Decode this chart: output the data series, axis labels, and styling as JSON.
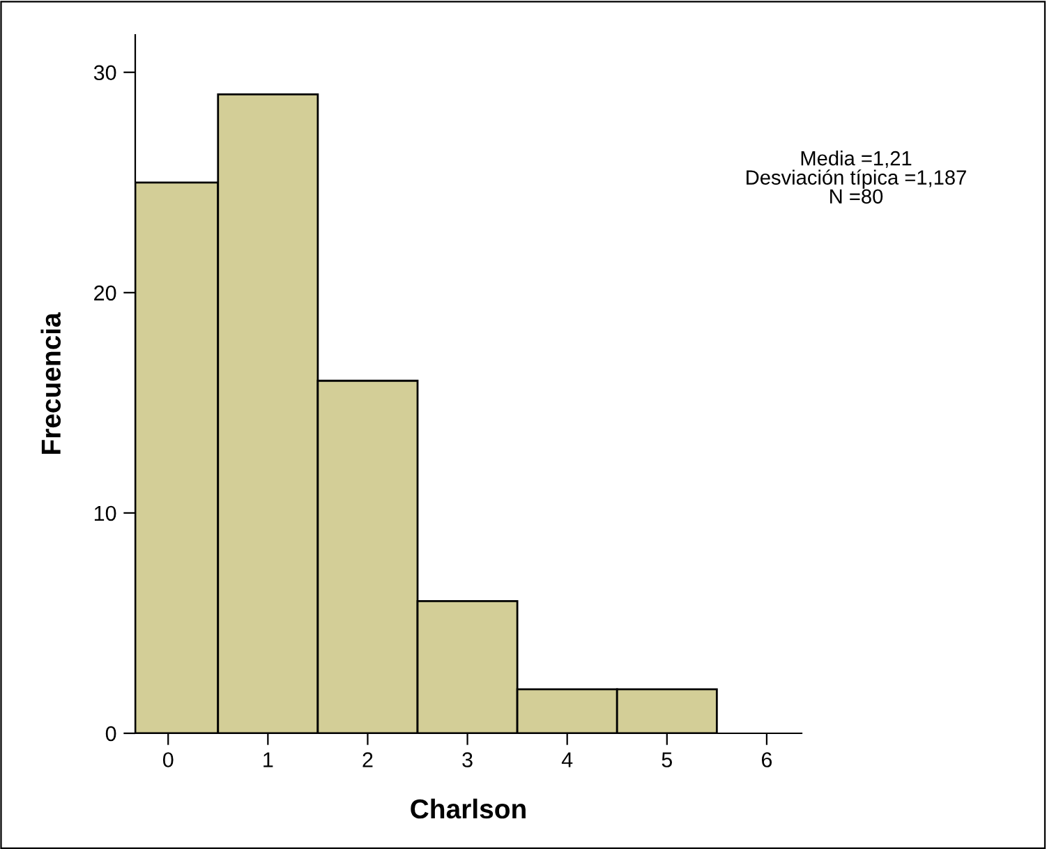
{
  "chart_data": {
    "type": "histogram",
    "xlabel": "Charlson",
    "ylabel": "Frecuencia",
    "bins": [
      -0.33,
      0.5,
      1.5,
      2.5,
      3.5,
      4.5,
      5.5
    ],
    "values": [
      25,
      29,
      16,
      6,
      2,
      2
    ],
    "color": "#d3ce97",
    "xlim": [
      -0.33,
      6.35
    ],
    "xticks": [
      0,
      1,
      2,
      3,
      4,
      5,
      6
    ],
    "ylim": [
      0,
      31.7
    ],
    "yticks": [
      0,
      10,
      20,
      30
    ],
    "annotations": [
      "Media =1,21\nDesviación típica =1,187\nN =80"
    ]
  }
}
